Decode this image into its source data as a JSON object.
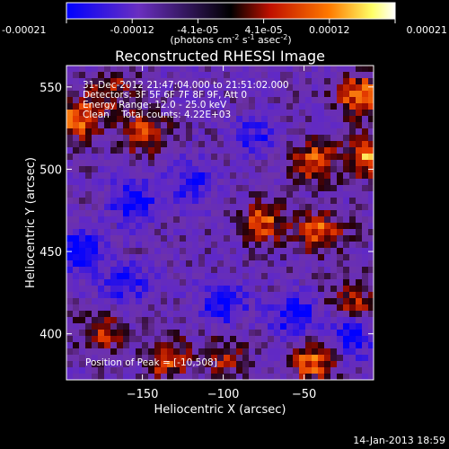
{
  "chart_data": {
    "type": "heatmap",
    "title": "Reconstructed RHESSI Image",
    "xlabel": "Heliocentric X (arcsec)",
    "ylabel": "Heliocentric Y (arcsec)",
    "xlim": [
      -197,
      -7
    ],
    "ylim": [
      372,
      563
    ],
    "xticks": [
      -150,
      -100,
      -50
    ],
    "yticks": [
      400,
      450,
      500,
      550
    ],
    "colorbar": {
      "range": [
        -0.00021,
        0.00021
      ],
      "tick_labels": [
        "-0.00021",
        "-0.00012",
        "-4.1e-05",
        "4.1e-05",
        "0.00012",
        "0.00021"
      ],
      "unit_label_parts": [
        "(photons cm",
        "-2",
        " s",
        "-1",
        " asec",
        "-2",
        ")"
      ],
      "colors": [
        "#0000ff",
        "#6a2fc0",
        "#000000",
        "#c01000",
        "#ff7a00",
        "#ffff66",
        "#ffffff"
      ]
    },
    "info_lines": [
      "31-Dec-2012 21:47:04.000 to 21:51:02.000",
      "Detectors: 3F 5F 6F 7F 8F 9F, Att 0",
      "Energy Range: 12.0 - 25.0 keV",
      "Clean    Total counts: 4.22E+03"
    ],
    "peak_label": "Position of Peak = [-10,508]",
    "bright_regions": [
      {
        "x": -15,
        "y": 545,
        "intensity": 1.0
      },
      {
        "x": -10,
        "y": 508,
        "intensity": 1.0
      },
      {
        "x": -45,
        "y": 505,
        "intensity": 0.85
      },
      {
        "x": -190,
        "y": 530,
        "intensity": 0.9
      },
      {
        "x": -150,
        "y": 522,
        "intensity": 0.8
      },
      {
        "x": -75,
        "y": 468,
        "intensity": 0.8
      },
      {
        "x": -40,
        "y": 462,
        "intensity": 0.85
      },
      {
        "x": -20,
        "y": 420,
        "intensity": 0.65
      },
      {
        "x": -135,
        "y": 385,
        "intensity": 0.8
      },
      {
        "x": -45,
        "y": 383,
        "intensity": 0.85
      },
      {
        "x": -175,
        "y": 400,
        "intensity": 0.6
      },
      {
        "x": -100,
        "y": 385,
        "intensity": 0.55
      },
      {
        "x": -170,
        "y": 548,
        "intensity": 0.6
      }
    ],
    "dark_regions": [
      {
        "x": -190,
        "y": 450,
        "intensity": -0.9
      },
      {
        "x": -155,
        "y": 480,
        "intensity": -0.8
      },
      {
        "x": -100,
        "y": 418,
        "intensity": -0.7
      },
      {
        "x": -55,
        "y": 410,
        "intensity": -0.8
      },
      {
        "x": -20,
        "y": 398,
        "intensity": -0.75
      },
      {
        "x": -120,
        "y": 492,
        "intensity": -0.6
      },
      {
        "x": -80,
        "y": 520,
        "intensity": -0.55
      },
      {
        "x": -160,
        "y": 430,
        "intensity": -0.6
      }
    ]
  },
  "footer": {
    "timestamp": "14-Jan-2013 18:59"
  }
}
